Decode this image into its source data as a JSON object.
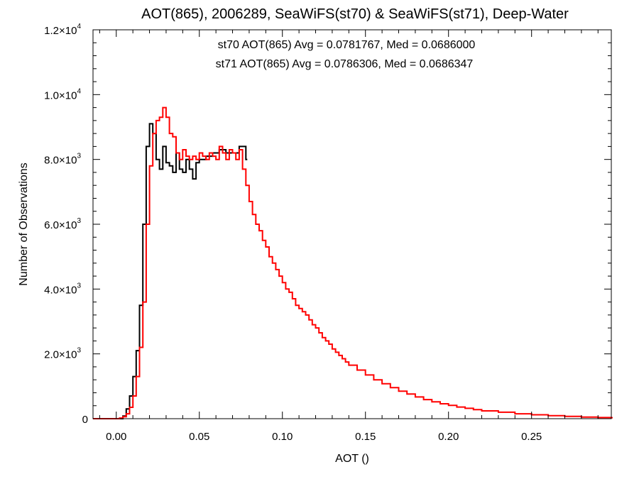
{
  "chart_data": {
    "type": "line",
    "title": "AOT(865), 2006289, SeaWiFS(st70) & SeaWiFS(st71), Deep-Water",
    "xlabel": "AOT ()",
    "ylabel": "Number of Observations",
    "xlim": [
      -0.014,
      0.298
    ],
    "ylim": [
      0,
      12000
    ],
    "xticks": [
      {
        "value": 0.0,
        "label": "0.00"
      },
      {
        "value": 0.05,
        "label": "0.05"
      },
      {
        "value": 0.1,
        "label": "0.10"
      },
      {
        "value": 0.15,
        "label": "0.15"
      },
      {
        "value": 0.2,
        "label": "0.20"
      },
      {
        "value": 0.25,
        "label": "0.25"
      }
    ],
    "yticks": [
      {
        "value": 0,
        "mant": "0",
        "exp": ""
      },
      {
        "value": 2000,
        "mant": "2.0×10",
        "exp": "3"
      },
      {
        "value": 4000,
        "mant": "4.0×10",
        "exp": "3"
      },
      {
        "value": 6000,
        "mant": "6.0×10",
        "exp": "3"
      },
      {
        "value": 8000,
        "mant": "8.0×10",
        "exp": "3"
      },
      {
        "value": 10000,
        "mant": "1.0×10",
        "exp": "4"
      },
      {
        "value": 12000,
        "mant": "1.2×10",
        "exp": "4"
      }
    ],
    "grid": false,
    "annotations": [
      {
        "text": "st70 AOT(865) Avg = 0.0781767, Med = 0.0686000",
        "color": "#000000"
      },
      {
        "text": "st71 AOT(865) Avg = 0.0786306, Med = 0.0686347",
        "color": "#ff0000"
      }
    ],
    "series": [
      {
        "color": "#000000",
        "x": [
          -0.014,
          0.0,
          0.004,
          0.006,
          0.008,
          0.01,
          0.012,
          0.014,
          0.016,
          0.018,
          0.02,
          0.022,
          0.024,
          0.026,
          0.028,
          0.03,
          0.032,
          0.034,
          0.036,
          0.038,
          0.04,
          0.042,
          0.044,
          0.046,
          0.048,
          0.05,
          0.054,
          0.058,
          0.062,
          0.066,
          0.07,
          0.074,
          0.078
        ],
        "y": [
          0,
          0,
          80,
          300,
          700,
          1300,
          2100,
          3500,
          6000,
          8400,
          9100,
          8800,
          8000,
          7700,
          8400,
          7900,
          7800,
          7600,
          8200,
          7700,
          7600,
          8000,
          7700,
          7400,
          7900,
          8000,
          8100,
          8200,
          8300,
          8200,
          8200,
          8400,
          8000
        ]
      },
      {
        "color": "#ff0000",
        "x": [
          -0.014,
          0.0,
          0.002,
          0.004,
          0.006,
          0.008,
          0.01,
          0.012,
          0.014,
          0.016,
          0.018,
          0.02,
          0.022,
          0.024,
          0.026,
          0.028,
          0.03,
          0.032,
          0.034,
          0.036,
          0.038,
          0.04,
          0.042,
          0.044,
          0.046,
          0.048,
          0.05,
          0.052,
          0.054,
          0.056,
          0.058,
          0.06,
          0.062,
          0.064,
          0.066,
          0.068,
          0.07,
          0.072,
          0.074,
          0.076,
          0.078,
          0.08,
          0.082,
          0.084,
          0.086,
          0.088,
          0.09,
          0.092,
          0.094,
          0.096,
          0.098,
          0.1,
          0.102,
          0.104,
          0.106,
          0.108,
          0.11,
          0.112,
          0.114,
          0.116,
          0.118,
          0.12,
          0.122,
          0.124,
          0.126,
          0.128,
          0.13,
          0.132,
          0.134,
          0.136,
          0.138,
          0.14,
          0.145,
          0.15,
          0.155,
          0.16,
          0.165,
          0.17,
          0.175,
          0.18,
          0.185,
          0.19,
          0.195,
          0.2,
          0.205,
          0.21,
          0.215,
          0.22,
          0.23,
          0.24,
          0.25,
          0.26,
          0.27,
          0.28,
          0.29,
          0.298
        ],
        "y": [
          0,
          0,
          20,
          60,
          150,
          350,
          700,
          1300,
          2200,
          3600,
          6000,
          7800,
          8800,
          9200,
          9300,
          9600,
          9300,
          8800,
          8700,
          8200,
          8000,
          8300,
          8100,
          8000,
          8100,
          8000,
          8200,
          8100,
          8000,
          8200,
          8100,
          8000,
          8400,
          8200,
          8000,
          8300,
          8200,
          8000,
          8300,
          7700,
          7200,
          6700,
          6300,
          6000,
          5800,
          5500,
          5300,
          5000,
          4800,
          4600,
          4400,
          4200,
          4000,
          3900,
          3700,
          3500,
          3400,
          3300,
          3200,
          3050,
          2900,
          2800,
          2650,
          2500,
          2400,
          2300,
          2150,
          2050,
          1950,
          1850,
          1750,
          1650,
          1500,
          1350,
          1200,
          1080,
          960,
          850,
          760,
          670,
          590,
          520,
          460,
          410,
          360,
          320,
          280,
          240,
          200,
          150,
          120,
          95,
          70,
          50,
          35,
          30
        ]
      }
    ]
  }
}
